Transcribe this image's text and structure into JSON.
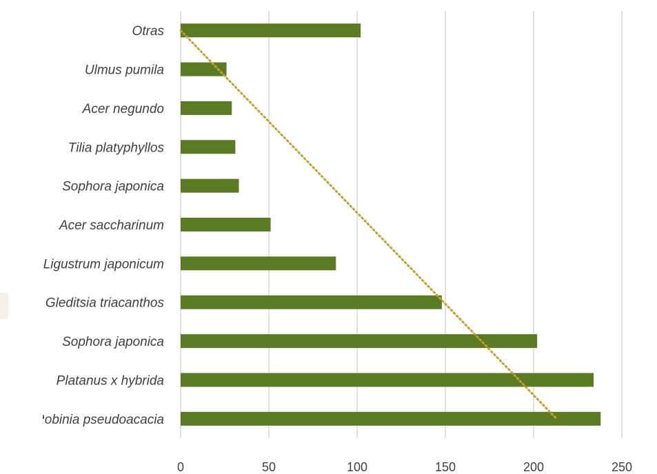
{
  "colors": {
    "bar": "#5a7a24",
    "trendline": "#c8a030",
    "gridline": "#d9d9d9",
    "text": "#404040"
  },
  "chart_data": {
    "type": "bar",
    "orientation": "horizontal",
    "categories": [
      "Otras",
      "Ulmus pumila",
      "Acer negundo",
      "Tilia platyphyllos",
      "Sophora japonica",
      "Acer saccharinum",
      "Ligustrum japonicum",
      "Gleditsia triacanthos",
      "Sophora japonica",
      "Platanus x hybrida",
      "Robinia pseudoacacia"
    ],
    "values": [
      102,
      26,
      29,
      31,
      33,
      51,
      88,
      148,
      202,
      234,
      238
    ],
    "xlim": [
      0,
      250
    ],
    "xticks": [
      "0",
      "50",
      "100",
      "150",
      "200",
      "250"
    ],
    "grid": "vertical",
    "trendline": {
      "type": "linear",
      "style": "dotted",
      "from": 0,
      "to": 213
    },
    "title": "",
    "xlabel": "",
    "ylabel": ""
  }
}
